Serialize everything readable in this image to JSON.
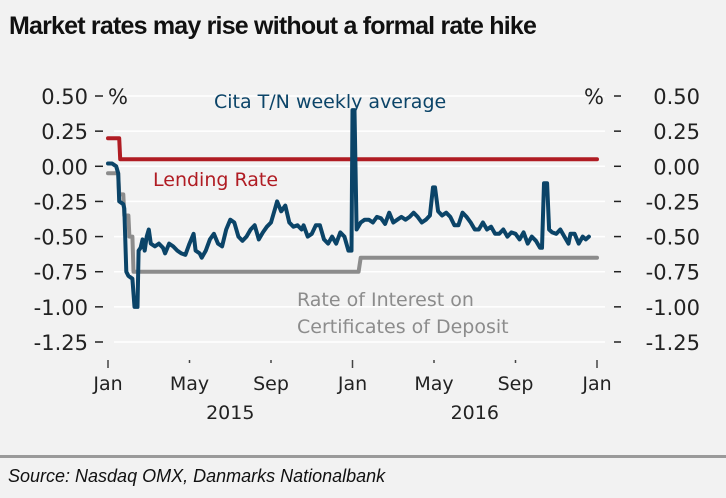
{
  "title": "Market rates may rise without a formal rate hike",
  "source": "Source: Nasdaq OMX, Danmarks Nationalbank",
  "colors": {
    "cita": "#0b4468",
    "lending": "#b01c23",
    "cd": "#8c8c8c",
    "grid": "#ffffff",
    "background": "#f2f2f2"
  },
  "chart_data": {
    "type": "line",
    "title": "Market rates may rise without a formal rate hike",
    "xlabel": "",
    "ylabel": "%",
    "y_unit_left": "%",
    "y_unit_right": "%",
    "ylim": [
      -1.25,
      0.5
    ],
    "yticks": [
      0.5,
      0.25,
      0.0,
      -0.25,
      -0.5,
      -0.75,
      -1.0,
      -1.25
    ],
    "ytick_labels": [
      "0.50",
      "0.25",
      "0.00",
      "-0.25",
      "-0.50",
      "-0.75",
      "-1.00",
      "-1.25"
    ],
    "xlim_months": [
      0,
      24
    ],
    "xticks": [
      {
        "month": 0,
        "label": "Jan"
      },
      {
        "month": 4,
        "label": "May"
      },
      {
        "month": 8,
        "label": "Sep"
      },
      {
        "month": 12,
        "label": "Jan"
      },
      {
        "month": 16,
        "label": "May"
      },
      {
        "month": 20,
        "label": "Sep"
      },
      {
        "month": 24,
        "label": "Jan"
      }
    ],
    "year_labels": [
      {
        "month": 6,
        "label": "2015"
      },
      {
        "month": 18,
        "label": "2016"
      }
    ],
    "grid": true,
    "legend": "inline annotations",
    "annotations": [
      {
        "series": "cita",
        "text": "Cita T/N weekly average"
      },
      {
        "series": "lending",
        "text": "Lending Rate"
      },
      {
        "series": "cd",
        "text": [
          "Rate of Interest on",
          "Certificates of Deposit"
        ]
      }
    ],
    "series": [
      {
        "name": "Cita T/N weekly average",
        "key": "cita",
        "points": [
          [
            0.0,
            0.02
          ],
          [
            0.2,
            0.02
          ],
          [
            0.4,
            0.0
          ],
          [
            0.5,
            -0.05
          ],
          [
            0.55,
            -0.25
          ],
          [
            0.75,
            -0.27
          ],
          [
            0.8,
            -0.3
          ],
          [
            0.9,
            -0.75
          ],
          [
            1.0,
            -0.78
          ],
          [
            1.1,
            -0.79
          ],
          [
            1.2,
            -0.8
          ],
          [
            1.3,
            -1.0
          ],
          [
            1.45,
            -1.0
          ],
          [
            1.5,
            -0.6
          ],
          [
            1.6,
            -0.58
          ],
          [
            1.7,
            -0.52
          ],
          [
            1.8,
            -0.6
          ],
          [
            1.9,
            -0.5
          ],
          [
            2.0,
            -0.45
          ],
          [
            2.1,
            -0.55
          ],
          [
            2.3,
            -0.57
          ],
          [
            2.5,
            -0.55
          ],
          [
            2.7,
            -0.58
          ],
          [
            2.8,
            -0.62
          ],
          [
            3.0,
            -0.55
          ],
          [
            3.2,
            -0.57
          ],
          [
            3.4,
            -0.6
          ],
          [
            3.6,
            -0.62
          ],
          [
            3.8,
            -0.63
          ],
          [
            4.0,
            -0.55
          ],
          [
            4.2,
            -0.48
          ],
          [
            4.3,
            -0.6
          ],
          [
            4.5,
            -0.62
          ],
          [
            4.6,
            -0.65
          ],
          [
            4.8,
            -0.6
          ],
          [
            5.0,
            -0.52
          ],
          [
            5.2,
            -0.48
          ],
          [
            5.4,
            -0.55
          ],
          [
            5.6,
            -0.57
          ],
          [
            5.8,
            -0.45
          ],
          [
            6.0,
            -0.38
          ],
          [
            6.2,
            -0.4
          ],
          [
            6.4,
            -0.5
          ],
          [
            6.6,
            -0.53
          ],
          [
            6.8,
            -0.5
          ],
          [
            7.0,
            -0.45
          ],
          [
            7.2,
            -0.42
          ],
          [
            7.4,
            -0.52
          ],
          [
            7.6,
            -0.47
          ],
          [
            7.8,
            -0.43
          ],
          [
            8.0,
            -0.4
          ],
          [
            8.2,
            -0.3
          ],
          [
            8.3,
            -0.25
          ],
          [
            8.5,
            -0.32
          ],
          [
            8.7,
            -0.28
          ],
          [
            8.9,
            -0.4
          ],
          [
            9.1,
            -0.43
          ],
          [
            9.3,
            -0.42
          ],
          [
            9.5,
            -0.45
          ],
          [
            9.6,
            -0.42
          ],
          [
            9.8,
            -0.5
          ],
          [
            10.0,
            -0.48
          ],
          [
            10.2,
            -0.42
          ],
          [
            10.4,
            -0.42
          ],
          [
            10.6,
            -0.52
          ],
          [
            10.8,
            -0.55
          ],
          [
            11.0,
            -0.5
          ],
          [
            11.2,
            -0.55
          ],
          [
            11.4,
            -0.47
          ],
          [
            11.6,
            -0.5
          ],
          [
            11.8,
            -0.6
          ],
          [
            11.95,
            -0.6
          ],
          [
            12.0,
            0.4
          ],
          [
            12.1,
            0.4
          ],
          [
            12.2,
            -0.45
          ],
          [
            12.4,
            -0.4
          ],
          [
            12.6,
            -0.38
          ],
          [
            12.8,
            -0.38
          ],
          [
            13.0,
            -0.4
          ],
          [
            13.2,
            -0.36
          ],
          [
            13.4,
            -0.37
          ],
          [
            13.6,
            -0.41
          ],
          [
            13.8,
            -0.33
          ],
          [
            14.0,
            -0.4
          ],
          [
            14.2,
            -0.38
          ],
          [
            14.4,
            -0.36
          ],
          [
            14.6,
            -0.38
          ],
          [
            14.8,
            -0.36
          ],
          [
            15.0,
            -0.33
          ],
          [
            15.2,
            -0.36
          ],
          [
            15.4,
            -0.4
          ],
          [
            15.6,
            -0.38
          ],
          [
            15.8,
            -0.35
          ],
          [
            15.95,
            -0.15
          ],
          [
            16.05,
            -0.15
          ],
          [
            16.2,
            -0.32
          ],
          [
            16.4,
            -0.35
          ],
          [
            16.6,
            -0.33
          ],
          [
            16.8,
            -0.36
          ],
          [
            17.0,
            -0.42
          ],
          [
            17.2,
            -0.42
          ],
          [
            17.4,
            -0.33
          ],
          [
            17.6,
            -0.36
          ],
          [
            17.8,
            -0.4
          ],
          [
            18.0,
            -0.45
          ],
          [
            18.2,
            -0.45
          ],
          [
            18.4,
            -0.4
          ],
          [
            18.6,
            -0.45
          ],
          [
            18.8,
            -0.43
          ],
          [
            19.0,
            -0.48
          ],
          [
            19.2,
            -0.48
          ],
          [
            19.4,
            -0.45
          ],
          [
            19.6,
            -0.5
          ],
          [
            19.8,
            -0.47
          ],
          [
            20.0,
            -0.48
          ],
          [
            20.2,
            -0.52
          ],
          [
            20.4,
            -0.47
          ],
          [
            20.6,
            -0.55
          ],
          [
            20.8,
            -0.5
          ],
          [
            21.0,
            -0.53
          ],
          [
            21.2,
            -0.58
          ],
          [
            21.3,
            -0.58
          ],
          [
            21.4,
            -0.12
          ],
          [
            21.55,
            -0.12
          ],
          [
            21.65,
            -0.45
          ],
          [
            21.8,
            -0.47
          ],
          [
            22.0,
            -0.48
          ],
          [
            22.2,
            -0.45
          ],
          [
            22.4,
            -0.5
          ],
          [
            22.6,
            -0.55
          ],
          [
            22.7,
            -0.48
          ],
          [
            22.9,
            -0.48
          ],
          [
            23.1,
            -0.55
          ],
          [
            23.3,
            -0.5
          ],
          [
            23.45,
            -0.52
          ],
          [
            23.6,
            -0.5
          ]
        ]
      },
      {
        "name": "Lending Rate",
        "key": "lending",
        "points": [
          [
            0.0,
            0.2
          ],
          [
            0.55,
            0.2
          ],
          [
            0.6,
            0.05
          ],
          [
            24.0,
            0.05
          ]
        ]
      },
      {
        "name": "Rate of Interest on Certificates of Deposit",
        "key": "cd",
        "points": [
          [
            0.0,
            -0.05
          ],
          [
            0.5,
            -0.05
          ],
          [
            0.55,
            -0.2
          ],
          [
            0.75,
            -0.2
          ],
          [
            0.8,
            -0.35
          ],
          [
            1.0,
            -0.35
          ],
          [
            1.05,
            -0.5
          ],
          [
            1.2,
            -0.5
          ],
          [
            1.25,
            -0.75
          ],
          [
            12.3,
            -0.75
          ],
          [
            12.4,
            -0.65
          ],
          [
            24.0,
            -0.65
          ]
        ]
      }
    ]
  }
}
